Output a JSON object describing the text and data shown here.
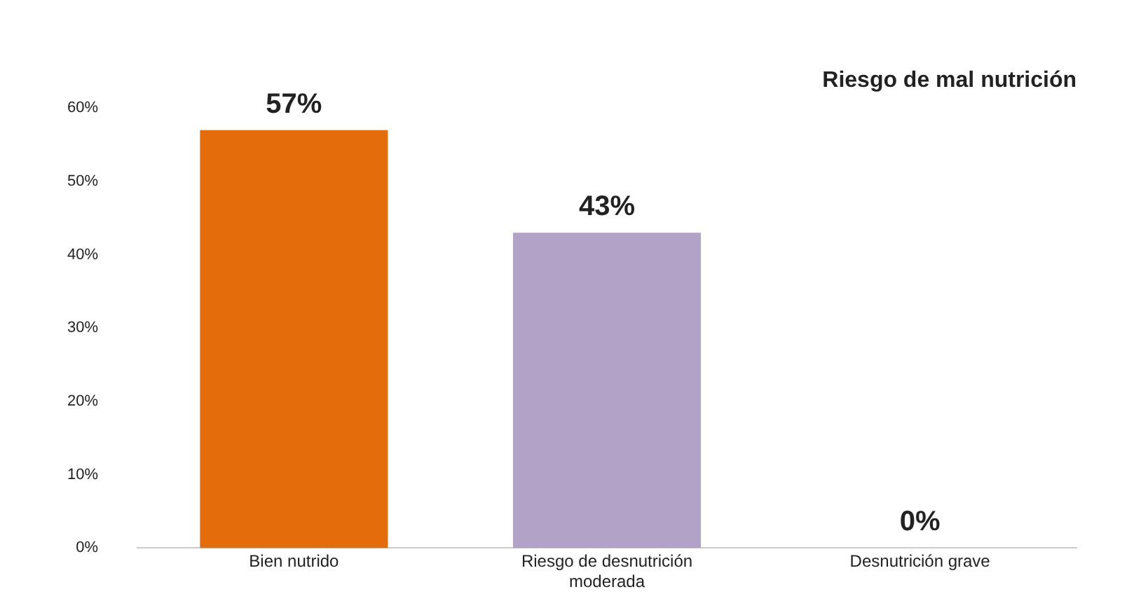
{
  "chart_data": {
    "type": "bar",
    "title": "Riesgo de mal nutrición",
    "categories": [
      "Bien nutrido",
      "Riesgo de desnutrición moderada",
      "Desnutrición grave"
    ],
    "values": [
      57,
      43,
      0
    ],
    "colors": [
      "#e46c0a",
      "#b3a2c7",
      "#c09000"
    ],
    "value_labels": [
      "57%",
      "43%",
      "0%"
    ],
    "ylim": [
      0,
      60
    ],
    "yticks": [
      {
        "value": 0,
        "label": "0%"
      },
      {
        "value": 10,
        "label": "10%"
      },
      {
        "value": 20,
        "label": "20%"
      },
      {
        "value": 30,
        "label": "30%"
      },
      {
        "value": 40,
        "label": "40%"
      },
      {
        "value": 50,
        "label": "50%"
      },
      {
        "value": 60,
        "label": "60%"
      }
    ],
    "grid": false,
    "legend": false
  }
}
